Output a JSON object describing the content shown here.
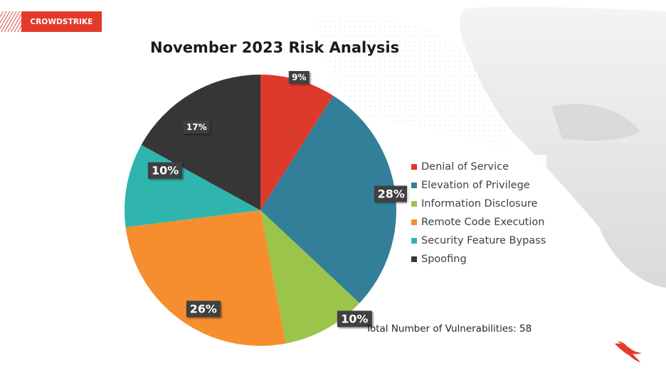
{
  "brand": {
    "logo_text": "CROWDSTRIKE",
    "color": "#e43a2b"
  },
  "chart_data": {
    "type": "pie",
    "title": "November 2023 Risk Analysis",
    "categories": [
      "Denial of Service",
      "Elevation of Privilege",
      "Information Disclosure",
      "Remote Code Execution",
      "Security Feature Bypass",
      "Spoofing"
    ],
    "values": [
      9,
      28,
      10,
      26,
      10,
      17
    ],
    "labels": [
      "9%",
      "28%",
      "10%",
      "26%",
      "10%",
      "17%"
    ],
    "colors": [
      "#dc3a2b",
      "#337f9a",
      "#9bc44b",
      "#f68e2f",
      "#2fb5ad",
      "#363636"
    ],
    "legend_position": "right"
  },
  "footnote": "Total Number of Vulnerabilities: 58"
}
